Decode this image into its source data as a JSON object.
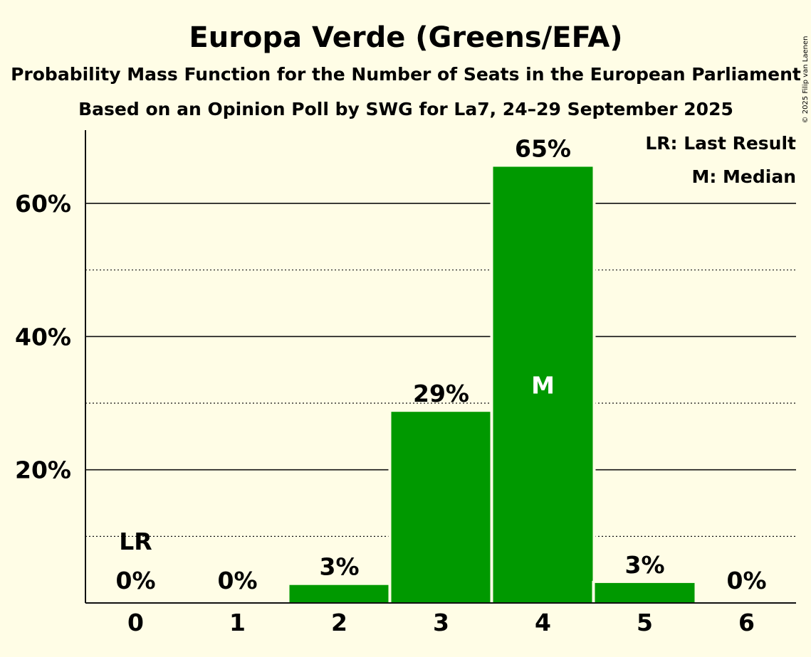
{
  "chart_data": {
    "type": "bar",
    "title": "Europa Verde (Greens/EFA)",
    "subtitle": "Probability Mass Function for the Number of Seats in the European Parliament",
    "subtitle2": "Based on an Opinion Poll by SWG for La7, 24–29 September 2025",
    "categories": [
      "0",
      "1",
      "2",
      "3",
      "4",
      "5",
      "6"
    ],
    "values": [
      0,
      0,
      2.7,
      28.7,
      65.5,
      3.0,
      0
    ],
    "value_labels": [
      "0%",
      "0%",
      "3%",
      "29%",
      "65%",
      "3%",
      "0%"
    ],
    "ylim": [
      0,
      71
    ],
    "yticks": [
      20,
      40,
      60
    ],
    "ytick_labels": [
      "20%",
      "40%",
      "60%"
    ],
    "minor_gridlines": [
      10,
      30,
      50
    ],
    "last_result_index": 0,
    "last_result_marker": "LR",
    "median_index": 4,
    "median_marker": "M",
    "bar_color": "#009900",
    "legend": [
      "LR: Last Result",
      "M: Median"
    ],
    "legend_position": "top-right"
  },
  "copyright": "© 2025 Filip van Laenen"
}
